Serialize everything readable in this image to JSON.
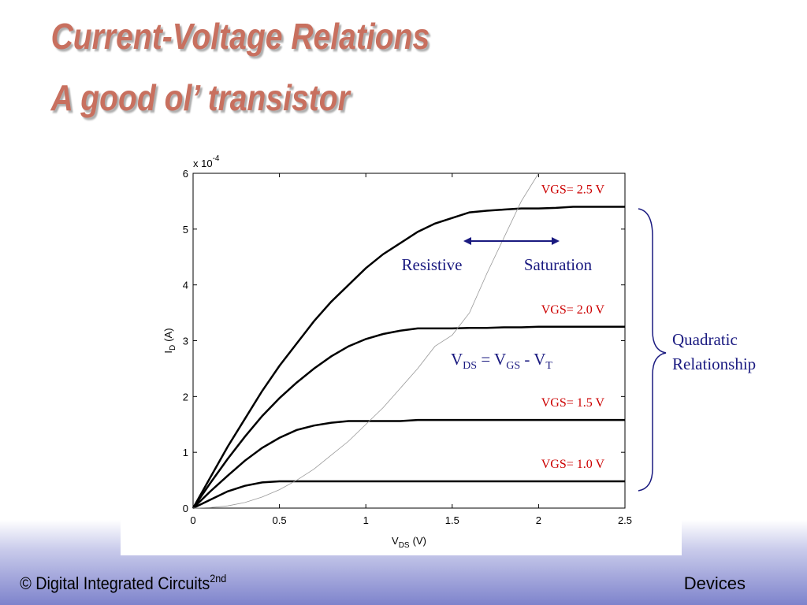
{
  "slide": {
    "title_lines": [
      "Current-Voltage Relations",
      "A good ol’ transistor"
    ],
    "footer_left": "© Digital Integrated Circuits",
    "footer_left_sup": "2nd",
    "footer_right": "Devices"
  },
  "chart_data": {
    "type": "line",
    "x": [
      0,
      0.1,
      0.2,
      0.3,
      0.4,
      0.5,
      0.6,
      0.7,
      0.8,
      0.9,
      1,
      1.1,
      1.2,
      1.3,
      1.4,
      1.5,
      1.6,
      1.7,
      1.8,
      1.9,
      2,
      2.1,
      2.2,
      2.3,
      2.4,
      2.5
    ],
    "xlim": [
      0,
      2.5
    ],
    "xticks": [
      0,
      0.5,
      1,
      1.5,
      2,
      2.5
    ],
    "ylim": [
      0,
      6
    ],
    "yticks": [
      0,
      1,
      2,
      3,
      4,
      5,
      6
    ],
    "y_multiplier": "x 10",
    "y_multiplier_exp": "-4",
    "x_label": "V",
    "x_label_sub": "DS",
    "x_label_unit": "(V)",
    "y_label": "I",
    "y_label_sub": "D",
    "y_label_unit": "(A)",
    "series": [
      {
        "name": "VGS= 2.5 V",
        "color": "#000000",
        "label_color": "#cc0000",
        "linewidth": 2.5,
        "values": [
          0,
          0.55,
          1.1,
          1.6,
          2.1,
          2.55,
          2.95,
          3.35,
          3.7,
          4.0,
          4.3,
          4.55,
          4.75,
          4.95,
          5.1,
          5.2,
          5.3,
          5.33,
          5.35,
          5.37,
          5.37,
          5.38,
          5.4,
          5.4,
          5.4,
          5.4
        ]
      },
      {
        "name": "VGS= 2.0 V",
        "color": "#000000",
        "label_color": "#cc0000",
        "linewidth": 2.5,
        "values": [
          0,
          0.45,
          0.88,
          1.28,
          1.65,
          1.97,
          2.25,
          2.5,
          2.72,
          2.9,
          3.03,
          3.12,
          3.18,
          3.22,
          3.22,
          3.22,
          3.23,
          3.23,
          3.24,
          3.24,
          3.25,
          3.25,
          3.25,
          3.25,
          3.25,
          3.25
        ]
      },
      {
        "name": "VGS= 1.5 V",
        "color": "#000000",
        "label_color": "#cc0000",
        "linewidth": 2.5,
        "values": [
          0,
          0.3,
          0.58,
          0.85,
          1.08,
          1.26,
          1.4,
          1.48,
          1.53,
          1.56,
          1.56,
          1.56,
          1.56,
          1.58,
          1.58,
          1.58,
          1.58,
          1.58,
          1.58,
          1.58,
          1.58,
          1.58,
          1.58,
          1.58,
          1.58,
          1.58
        ]
      },
      {
        "name": "VGS= 1.0 V",
        "color": "#000000",
        "label_color": "#cc0000",
        "linewidth": 2.5,
        "values": [
          0,
          0.15,
          0.3,
          0.4,
          0.46,
          0.48,
          0.48,
          0.48,
          0.48,
          0.48,
          0.48,
          0.48,
          0.48,
          0.48,
          0.48,
          0.48,
          0.48,
          0.48,
          0.48,
          0.48,
          0.48,
          0.48,
          0.48,
          0.48,
          0.48,
          0.48
        ]
      },
      {
        "color": "#999999",
        "linewidth": 0.8,
        "values": [
          0,
          0.01,
          0.04,
          0.1,
          0.2,
          0.33,
          0.5,
          0.7,
          0.95,
          1.2,
          1.5,
          1.8,
          2.15,
          2.5,
          2.9,
          3.1,
          3.5,
          4.2,
          4.85,
          5.5,
          6.0,
          null,
          null,
          null,
          null,
          null
        ]
      }
    ],
    "annotations": {
      "resistive": "Resistive",
      "saturation": "Saturation",
      "quadratic": [
        "Quadratic",
        "Relationship"
      ],
      "boundary": [
        "V",
        "DS",
        " = V",
        "GS",
        " - V",
        "T"
      ]
    }
  }
}
